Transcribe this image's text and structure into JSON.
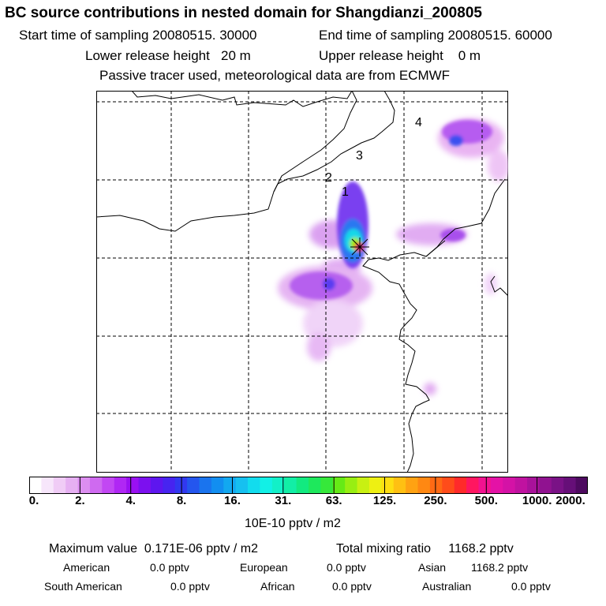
{
  "header": {
    "title": "BC  source contributions in nested domain for Shangdianzi_200805",
    "start_label": "Start time of sampling",
    "start_value": "20080515. 30000",
    "end_label": "End time of sampling",
    "end_value": "20080515. 60000",
    "lower_label": "Lower release height",
    "lower_value": "20 m",
    "upper_label": "Upper release height",
    "upper_value": "0 m",
    "note": "Passive tracer used, meteorological data are from ECMWF"
  },
  "map": {
    "region_labels": [
      "1",
      "2",
      "3",
      "4"
    ],
    "receptor_marker": "x-marker-icon"
  },
  "colorbar": {
    "ticks": [
      "0.",
      "2.",
      "4.",
      "8.",
      "16.",
      "31.",
      "63.",
      "125.",
      "250.",
      "500.",
      "1000.",
      "2000."
    ],
    "colors": [
      "#ffffff",
      "#f7e6fb",
      "#f0ccf6",
      "#e6b0f2",
      "#dc8ef0",
      "#cf6af0",
      "#c247f3",
      "#b027f4",
      "#9a10f2",
      "#7c10ef",
      "#5e16ef",
      "#4724f0",
      "#3138f0",
      "#2456ee",
      "#1a74ee",
      "#128ef0",
      "#12a8f0",
      "#16c0f0",
      "#12dcee",
      "#12f0e6",
      "#12f0c8",
      "#12eea6",
      "#12ea80",
      "#1ee85c",
      "#36e83a",
      "#66ea16",
      "#98ee12",
      "#c8f012",
      "#eef012",
      "#fede12",
      "#ffc012",
      "#ffa212",
      "#ff8812",
      "#ff6a14",
      "#ff4c1a",
      "#ff2a2a",
      "#ff1660",
      "#f21290",
      "#e412a6",
      "#d412a6",
      "#c012a0",
      "#a8129a",
      "#901290",
      "#7a1286",
      "#660f78",
      "#4e0a60"
    ],
    "units": "10E-10 pptv / m2"
  },
  "summary": {
    "max_label": "Maximum value",
    "max_value": "0.171E-06 pptv / m2",
    "total_label": "Total mixing ratio",
    "total_value": "1168.2 pptv",
    "regions": [
      {
        "name": "American",
        "value": "0.0 pptv"
      },
      {
        "name": "European",
        "value": "0.0 pptv"
      },
      {
        "name": "Asian",
        "value": "1168.2 pptv"
      },
      {
        "name": "South American",
        "value": "0.0 pptv"
      },
      {
        "name": "African",
        "value": "0.0 pptv"
      },
      {
        "name": "Australian",
        "value": "0.0 pptv"
      }
    ]
  }
}
